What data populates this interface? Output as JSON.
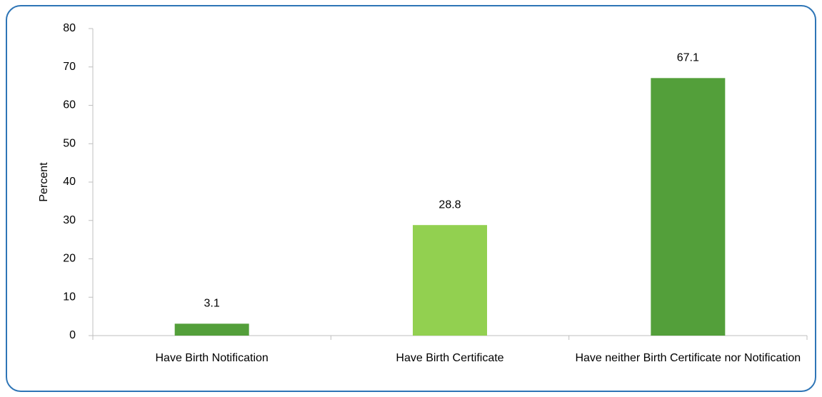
{
  "chart_data": {
    "type": "bar",
    "y_label": "Percent",
    "categories": [
      "Have Birth Notification",
      "Have Birth Certificate",
      "Have neither Birth Certificate nor Notification"
    ],
    "values": [
      3.1,
      28.8,
      67.1
    ],
    "colors": [
      "#539f3a",
      "#92d050",
      "#539f3a"
    ],
    "ylim": [
      0,
      80
    ],
    "yticks": [
      0,
      10,
      20,
      30,
      40,
      50,
      60,
      70,
      80
    ],
    "grid": false
  }
}
